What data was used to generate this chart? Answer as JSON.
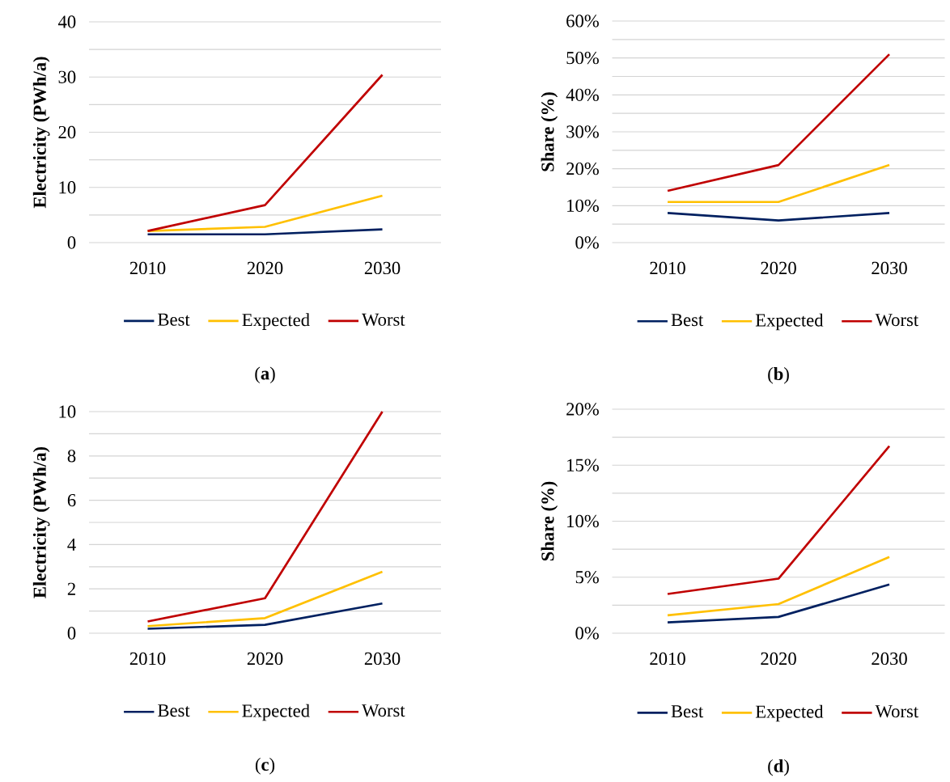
{
  "chart_data": [
    {
      "type": "line",
      "ylabel": "Electricity (PWh/a)",
      "categories": [
        "2010",
        "2020",
        "2030"
      ],
      "ylim": [
        0,
        40
      ],
      "yticks": [
        0,
        {
          "value": 5,
          "label": null
        },
        10,
        {
          "value": 15,
          "label": null
        },
        20,
        {
          "value": 25,
          "label": null
        },
        30,
        {
          "value": 35,
          "label": null
        },
        40
      ],
      "grid": "y",
      "legend": "bottom",
      "annotations": [
        "(**a**)"
      ],
      "series": [
        {
          "name": "Best",
          "color": "#002060",
          "values": [
            1.5,
            1.5,
            2.4
          ]
        },
        {
          "name": "Expected",
          "color": "#ffc000",
          "values": [
            2.1,
            2.85,
            8.5
          ]
        },
        {
          "name": "Worst",
          "color": "#c00000",
          "values": [
            2.1,
            6.8,
            30.4
          ]
        }
      ]
    },
    {
      "type": "line",
      "ylabel": "Share (%)",
      "categories": [
        "2010",
        "2020",
        "2030"
      ],
      "ylim": [
        0,
        60
      ],
      "yticks": [
        {
          "value": 0,
          "label": "0%"
        },
        {
          "value": 5,
          "label": null
        },
        {
          "value": 10,
          "label": "10%"
        },
        {
          "value": 15,
          "label": null
        },
        {
          "value": 20,
          "label": "20%"
        },
        {
          "value": 25,
          "label": null
        },
        {
          "value": 30,
          "label": "30%"
        },
        {
          "value": 35,
          "label": null
        },
        {
          "value": 40,
          "label": "40%"
        },
        {
          "value": 45,
          "label": null
        },
        {
          "value": 50,
          "label": "50%"
        },
        {
          "value": 55,
          "label": null
        },
        {
          "value": 60,
          "label": "60%"
        }
      ],
      "grid": "y",
      "legend": "bottom",
      "annotations": [
        "(**b**)"
      ],
      "series": [
        {
          "name": "Best",
          "color": "#002060",
          "values": [
            8,
            6,
            8
          ]
        },
        {
          "name": "Expected",
          "color": "#ffc000",
          "values": [
            11,
            11,
            21
          ]
        },
        {
          "name": "Worst",
          "color": "#c00000",
          "values": [
            14,
            21,
            51
          ]
        }
      ]
    },
    {
      "type": "line",
      "ylabel": "Electricity (PWh/a)",
      "categories": [
        "2010",
        "2020",
        "2030"
      ],
      "ylim": [
        0,
        10
      ],
      "yticks": [
        0,
        {
          "value": 1,
          "label": null
        },
        2,
        {
          "value": 3,
          "label": null
        },
        4,
        {
          "value": 5,
          "label": null
        },
        6,
        {
          "value": 7,
          "label": null
        },
        8,
        {
          "value": 9,
          "label": null
        },
        10
      ],
      "grid": "y",
      "legend": "bottom",
      "annotations": [
        "(**c**)"
      ],
      "series": [
        {
          "name": "Best",
          "color": "#002060",
          "values": [
            0.2,
            0.38,
            1.34
          ]
        },
        {
          "name": "Expected",
          "color": "#ffc000",
          "values": [
            0.32,
            0.68,
            2.77
          ]
        },
        {
          "name": "Worst",
          "color": "#c00000",
          "values": [
            0.53,
            1.58,
            10
          ]
        }
      ]
    },
    {
      "type": "line",
      "ylabel": "Share (%)",
      "categories": [
        "2010",
        "2020",
        "2030"
      ],
      "ylim": [
        0,
        20
      ],
      "yticks": [
        {
          "value": 0,
          "label": "0%"
        },
        {
          "value": 2.5,
          "label": null
        },
        {
          "value": 5,
          "label": "5%"
        },
        {
          "value": 7.5,
          "label": null
        },
        {
          "value": 10,
          "label": "10%"
        },
        {
          "value": 12.5,
          "label": null
        },
        {
          "value": 15,
          "label": "15%"
        },
        {
          "value": 17.5,
          "label": null
        },
        {
          "value": 20,
          "label": "20%"
        }
      ],
      "grid": "y",
      "legend": "bottom",
      "annotations": [
        "(**d**)"
      ],
      "series": [
        {
          "name": "Best",
          "color": "#002060",
          "values": [
            0.97,
            1.45,
            4.35
          ]
        },
        {
          "name": "Expected",
          "color": "#ffc000",
          "values": [
            1.6,
            2.6,
            6.8
          ]
        },
        {
          "name": "Worst",
          "color": "#c00000",
          "values": [
            3.5,
            4.87,
            16.7
          ]
        }
      ]
    }
  ]
}
